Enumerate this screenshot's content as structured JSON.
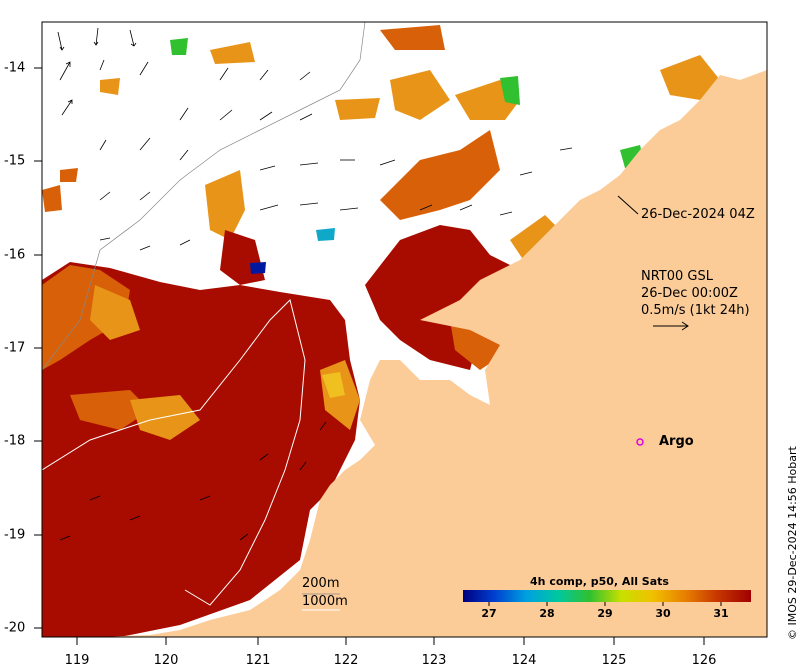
{
  "map": {
    "axis_x_labels": [
      "119",
      "120",
      "121",
      "122",
      "123",
      "124",
      "125",
      "126"
    ],
    "axis_y_labels": [
      "-14",
      "-15",
      "-16",
      "-17",
      "-18",
      "-19",
      "-20"
    ],
    "colors": {
      "land": "#fccc98",
      "sst_hot": "#a80c00",
      "sst_mid": "#d86008",
      "sst_warm": "#e89418",
      "sst_cool": "#f0c020",
      "sst_green": "#30c030",
      "sst_cyan": "#10a8c8",
      "sst_blue": "#0018a0"
    }
  },
  "annotations": {
    "timestamp_label": "26-Dec-2024 04Z",
    "current_source": "NRT00 GSL",
    "current_time": "26-Dec 00:00Z",
    "current_scale": "0.5m/s (1kt 24h)",
    "argo_label": "Argo"
  },
  "depth_contours": {
    "contour_200": "200m",
    "contour_1000": "1000m"
  },
  "colorbar": {
    "title": "4h comp, p50, All Sats",
    "tick_labels": [
      "27",
      "28",
      "29",
      "30",
      "31"
    ],
    "stops": [
      "#000080",
      "#0040d0",
      "#00a0e0",
      "#00c8a0",
      "#30c030",
      "#c8e000",
      "#f0c000",
      "#e88000",
      "#c83800",
      "#a00000"
    ]
  },
  "credit": "© IMOS 29-Dec-2024 14:56 Hobart"
}
